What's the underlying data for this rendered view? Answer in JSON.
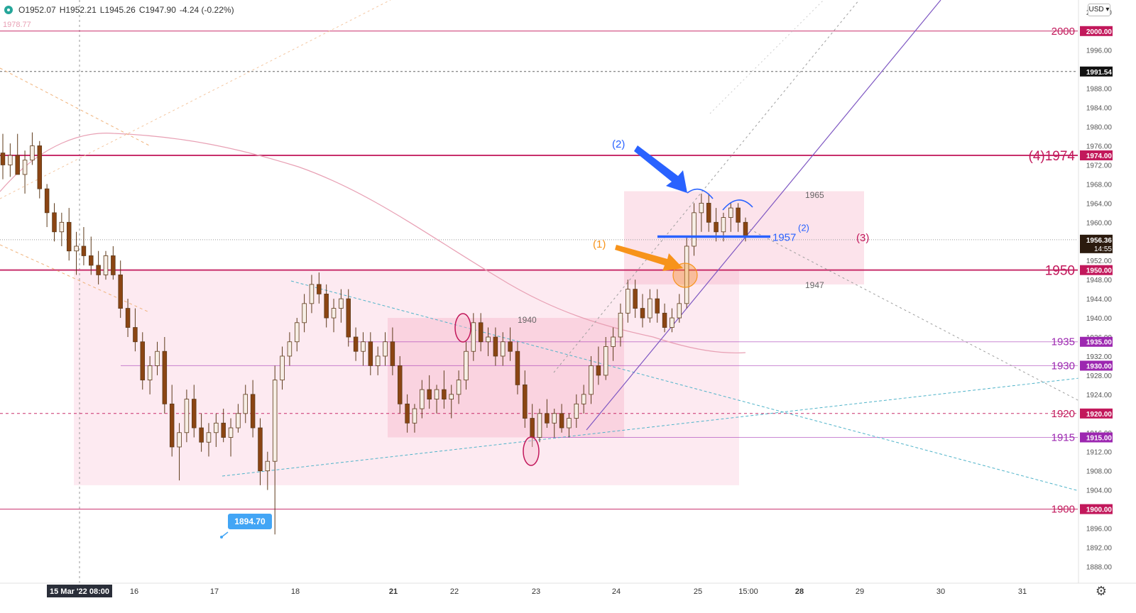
{
  "header": {
    "open": "O1952.07",
    "high": "H1952.21",
    "low": "L1945.26",
    "close": "C1947.90",
    "change": "-4.24 (-0.22%)",
    "status_color": "#26a69a",
    "prev_level": "1978.77"
  },
  "currency_button": "USD",
  "settings_icon": "gear-icon",
  "chart_data": {
    "type": "candlestick",
    "instrument_unit": "USD",
    "ylim": [
      1884.5,
      2006.5
    ],
    "x_axis": {
      "current_label": "15 Mar '22  08:00",
      "ticks": [
        "16",
        "17",
        "18",
        "21",
        "22",
        "23",
        "24",
        "25",
        "15:00",
        "28",
        "29",
        "30",
        "31"
      ]
    },
    "y_ticks": [
      1888,
      1892,
      1896,
      1900,
      1904,
      1908,
      1912,
      1916,
      1920,
      1924,
      1928,
      1932,
      1936,
      1940,
      1944,
      1948,
      1952,
      1956,
      1960,
      1964,
      1968,
      1972,
      1976,
      1980,
      1984,
      1988,
      1992,
      1996,
      2000,
      2004
    ],
    "horizontal_levels": [
      {
        "price": 2000,
        "tag": "2000.00",
        "label": "2000",
        "color": "#c2185b"
      },
      {
        "price": 1974,
        "tag": "1974.00",
        "label": "(4)1974",
        "color": "#c2185b"
      },
      {
        "price": 1950,
        "tag": "1950.00",
        "label": "1950",
        "color": "#c2185b"
      },
      {
        "price": 1935,
        "tag": "1935.00",
        "label": "1935",
        "color": "#9c27b0"
      },
      {
        "price": 1930,
        "tag": "1930.00",
        "label": "1930",
        "color": "#9c27b0"
      },
      {
        "price": 1920,
        "tag": "1920.00",
        "label": "1920",
        "color": "#c2185b"
      },
      {
        "price": 1915,
        "tag": "1915.00",
        "label": "1915",
        "color": "#9c27b0"
      },
      {
        "price": 1900,
        "tag": "1900.00",
        "label": "1900",
        "color": "#c2185b"
      }
    ],
    "dotted_level": {
      "price": 1991.54,
      "tag": "1991.54"
    },
    "last_price": {
      "price": 1956.36,
      "tag": "1956.36",
      "countdown": "14:55"
    },
    "low_marker": {
      "price": 1894.7,
      "label": "1894.70"
    },
    "zone_labels": [
      "1965",
      "1947",
      "1940"
    ],
    "annotations": {
      "blue_level_label": "1957",
      "blue_level_sup": "(2)",
      "blue_arrow_label": "(2)",
      "orange_arrow_label": "(1)",
      "pink_label": "(3)"
    },
    "candles": [
      [
        1974.5,
        1978.5,
        1969,
        1972
      ],
      [
        1972,
        1976.5,
        1969.5,
        1974
      ],
      [
        1974,
        1978.5,
        1971,
        1970
      ],
      [
        1970,
        1975,
        1966,
        1973
      ],
      [
        1973,
        1978.8,
        1972,
        1976
      ],
      [
        1976,
        1977,
        1965,
        1967
      ],
      [
        1967,
        1968,
        1959,
        1962
      ],
      [
        1962,
        1964,
        1956,
        1958
      ],
      [
        1958,
        1962,
        1955,
        1960
      ],
      [
        1960,
        1963,
        1952,
        1954
      ],
      [
        1954,
        1958,
        1949,
        1955
      ],
      [
        1955,
        1959,
        1951,
        1953
      ],
      [
        1953,
        1957,
        1949,
        1951
      ],
      [
        1951,
        1954,
        1947,
        1949
      ],
      [
        1949,
        1954,
        1948,
        1953
      ],
      [
        1953,
        1955,
        1948,
        1949
      ],
      [
        1949,
        1952,
        1940,
        1942
      ],
      [
        1942,
        1944,
        1936,
        1938
      ],
      [
        1938,
        1942,
        1933,
        1935
      ],
      [
        1935,
        1937,
        1925,
        1927
      ],
      [
        1927,
        1932,
        1924,
        1930
      ],
      [
        1930,
        1935,
        1928,
        1933
      ],
      [
        1933,
        1936,
        1920,
        1922
      ],
      [
        1922,
        1926,
        1911,
        1913
      ],
      [
        1913,
        1918,
        1906,
        1916
      ],
      [
        1916,
        1925,
        1914,
        1923
      ],
      [
        1923,
        1926,
        1915,
        1917
      ],
      [
        1917,
        1920,
        1912,
        1914
      ],
      [
        1914,
        1918,
        1911,
        1916
      ],
      [
        1916,
        1920,
        1913,
        1918
      ],
      [
        1918,
        1921,
        1914,
        1915
      ],
      [
        1915,
        1919,
        1911,
        1917
      ],
      [
        1917,
        1922,
        1916,
        1920
      ],
      [
        1920,
        1926,
        1918,
        1924
      ],
      [
        1924,
        1927,
        1915,
        1917
      ],
      [
        1917,
        1919,
        1905,
        1908
      ],
      [
        1908,
        1912,
        1904,
        1910
      ],
      [
        1910,
        1930,
        1894.7,
        1927
      ],
      [
        1927,
        1934,
        1925,
        1932
      ],
      [
        1932,
        1937,
        1930,
        1935
      ],
      [
        1935,
        1940,
        1933,
        1939
      ],
      [
        1939,
        1945,
        1937,
        1943
      ],
      [
        1943,
        1949,
        1941,
        1947
      ],
      [
        1947,
        1949.5,
        1943,
        1945
      ],
      [
        1945,
        1947,
        1938,
        1940
      ],
      [
        1940,
        1944,
        1937,
        1942
      ],
      [
        1942,
        1946,
        1939,
        1944
      ],
      [
        1944,
        1946,
        1934,
        1936
      ],
      [
        1936,
        1938,
        1931,
        1933
      ],
      [
        1933,
        1937,
        1930,
        1935
      ],
      [
        1935,
        1937,
        1928,
        1930
      ],
      [
        1930,
        1934,
        1928,
        1932
      ],
      [
        1932,
        1937,
        1930,
        1935
      ],
      [
        1935,
        1938,
        1928,
        1930
      ],
      [
        1930,
        1932,
        1920,
        1922
      ],
      [
        1922,
        1924,
        1916,
        1918
      ],
      [
        1918,
        1922,
        1916,
        1921
      ],
      [
        1921,
        1927,
        1919,
        1925
      ],
      [
        1925,
        1928,
        1921,
        1923
      ],
      [
        1923,
        1926,
        1920,
        1925
      ],
      [
        1925,
        1929,
        1921,
        1923
      ],
      [
        1923,
        1926,
        1919,
        1924
      ],
      [
        1924,
        1929,
        1922,
        1927
      ],
      [
        1927,
        1935,
        1925,
        1933
      ],
      [
        1933,
        1941,
        1931,
        1939
      ],
      [
        1939,
        1941,
        1933,
        1935
      ],
      [
        1935,
        1938,
        1932,
        1936
      ],
      [
        1936,
        1938,
        1930,
        1932
      ],
      [
        1932,
        1937,
        1930,
        1935
      ],
      [
        1935,
        1938,
        1931,
        1933
      ],
      [
        1933,
        1935,
        1924,
        1926
      ],
      [
        1926,
        1929,
        1917,
        1919
      ],
      [
        1919,
        1922,
        1913,
        1915
      ],
      [
        1915,
        1921,
        1914,
        1920
      ],
      [
        1920,
        1923,
        1917,
        1918
      ],
      [
        1918,
        1921,
        1915,
        1920
      ],
      [
        1920,
        1922,
        1916,
        1917
      ],
      [
        1917,
        1920,
        1915,
        1919
      ],
      [
        1919,
        1924,
        1917,
        1922
      ],
      [
        1922,
        1926,
        1920,
        1924
      ],
      [
        1924,
        1932,
        1922,
        1930
      ],
      [
        1930,
        1934,
        1926,
        1928
      ],
      [
        1928,
        1936,
        1927,
        1934
      ],
      [
        1934,
        1938,
        1931,
        1936
      ],
      [
        1936,
        1943,
        1934,
        1941
      ],
      [
        1941,
        1948,
        1939,
        1946
      ],
      [
        1946,
        1948,
        1940,
        1942
      ],
      [
        1942,
        1945,
        1938,
        1940
      ],
      [
        1940,
        1946,
        1939,
        1944
      ],
      [
        1944,
        1946,
        1939,
        1941
      ],
      [
        1941,
        1943,
        1937,
        1938
      ],
      [
        1938,
        1942,
        1937,
        1940
      ],
      [
        1940,
        1945,
        1939,
        1943
      ],
      [
        1943,
        1957,
        1942,
        1955
      ],
      [
        1955,
        1964,
        1953,
        1962
      ],
      [
        1962,
        1966,
        1958,
        1964
      ],
      [
        1964,
        1966,
        1958,
        1960
      ],
      [
        1960,
        1963,
        1956,
        1958
      ],
      [
        1958,
        1962,
        1956,
        1961
      ],
      [
        1961,
        1964,
        1958,
        1963
      ],
      [
        1963,
        1964,
        1958,
        1960
      ],
      [
        1960,
        1961,
        1956,
        1957
      ]
    ]
  }
}
